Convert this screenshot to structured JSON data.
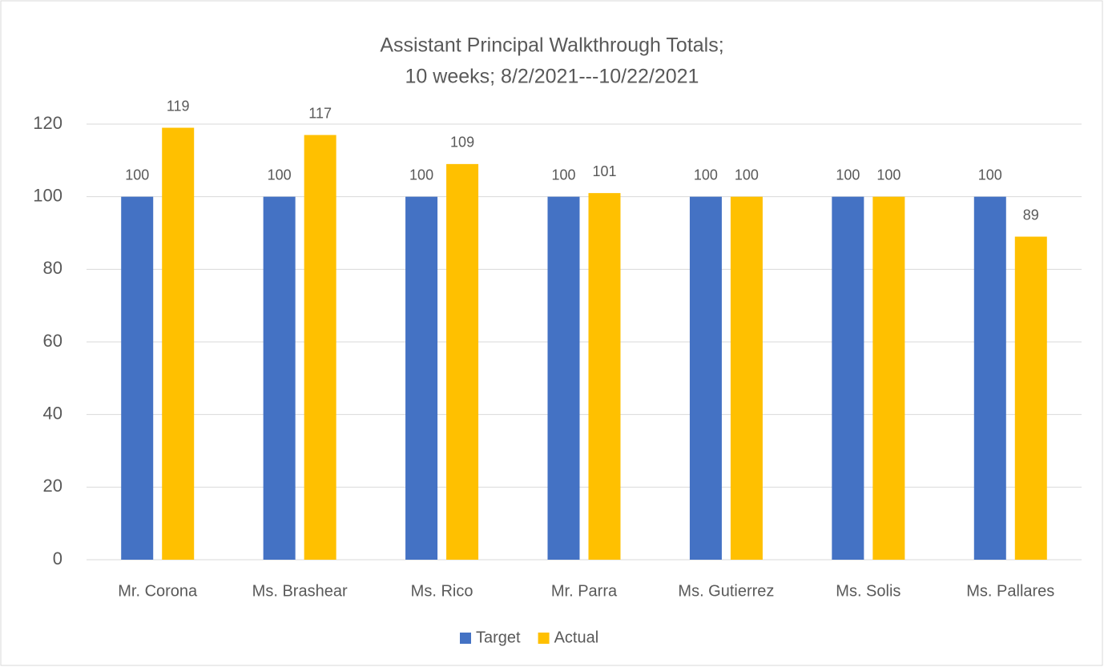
{
  "chart_data": {
    "type": "bar",
    "title": [
      "Assistant Principal Walkthrough Totals;",
      "10 weeks; 8/2/2021---10/22/2021"
    ],
    "categories": [
      "Mr. Corona",
      "Ms. Brashear",
      "Ms. Rico",
      "Mr. Parra",
      "Ms. Gutierrez",
      "Ms. Solis",
      "Ms. Pallares"
    ],
    "series": [
      {
        "name": "Target",
        "color": "#4472c4",
        "values": [
          100,
          100,
          100,
          100,
          100,
          100,
          100
        ]
      },
      {
        "name": "Actual",
        "color": "#ffc000",
        "values": [
          119,
          117,
          109,
          101,
          100,
          100,
          89
        ]
      }
    ],
    "ylim": [
      0,
      120
    ],
    "yticks": [
      0,
      20,
      40,
      60,
      80,
      100,
      120
    ],
    "grid": true,
    "legend": "bottom"
  }
}
